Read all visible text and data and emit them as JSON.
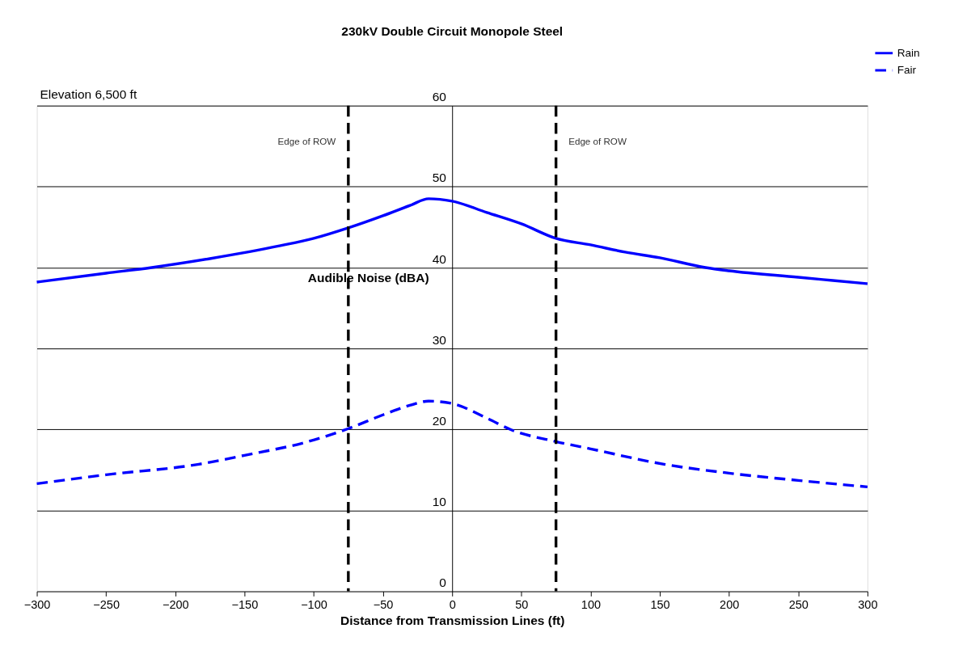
{
  "chart_data": {
    "type": "line",
    "title": "230kV Double Circuit Monopole Steel",
    "xlabel": "Distance from Transmission Lines (ft)",
    "ylabel": "Audible Noise (dBA)",
    "annotations": [
      "Elevation 6,500 ft"
    ],
    "series": [
      {
        "name": "Rain",
        "color": "#0000ff",
        "line_style": "solid",
        "x": [
          -300,
          -250,
          -217,
          -175,
          -124,
          -100,
          -75,
          -50,
          -30,
          -17,
          0,
          25,
          50,
          75,
          100,
          125,
          150,
          183,
          200,
          250,
          275,
          300
        ],
        "values": [
          38.2,
          39.3,
          40.0,
          41.1,
          42.7,
          43.6,
          44.9,
          46.4,
          47.7,
          48.5,
          48.2,
          46.8,
          45.4,
          43.6,
          42.8,
          41.9,
          41.2,
          40.0,
          39.6,
          38.8,
          38.4,
          38.0
        ]
      },
      {
        "name": "Fair",
        "color": "#0000ff",
        "line_style": "dashed",
        "x": [
          -300,
          -250,
          -183,
          -150,
          -104,
          -75,
          -50,
          -30,
          -17,
          0,
          25,
          42,
          75,
          100,
          153,
          200,
          250,
          300
        ],
        "values": [
          13.3,
          14.4,
          15.7,
          16.8,
          18.5,
          20.1,
          21.8,
          23.0,
          23.5,
          23.2,
          21.4,
          20.0,
          18.5,
          17.6,
          15.7,
          14.6,
          13.7,
          12.9
        ]
      }
    ],
    "ref_lines": [
      {
        "axis": "x",
        "value": -75,
        "label": "Edge of ROW",
        "color": "#000000",
        "line_style": "dashed"
      },
      {
        "axis": "x",
        "value": 75,
        "label": "Edge of ROW",
        "color": "#000000",
        "line_style": "dashed"
      }
    ],
    "xlim": [
      -300,
      300
    ],
    "xticks": [
      -300,
      -250,
      -200,
      -150,
      -100,
      -50,
      0,
      50,
      100,
      150,
      200,
      250,
      300
    ],
    "ylim": [
      0,
      60
    ],
    "yticks": [
      0,
      10,
      20,
      30,
      40,
      50,
      60
    ],
    "grid": "y",
    "legend": "top right"
  }
}
